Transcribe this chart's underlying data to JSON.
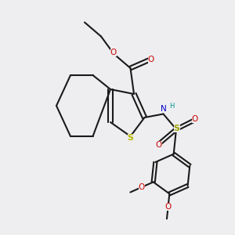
{
  "bg_color": "#eeeef0",
  "bond_color": "#1a1a1a",
  "S_thio_color": "#b8b800",
  "S_sulf_color": "#a0a000",
  "O_color": "#cc0000",
  "N_color": "#0000cc",
  "H_color": "#009090",
  "font_size": 7.5,
  "lw": 1.5,
  "xlim": [
    0,
    10
  ],
  "ylim": [
    0,
    10
  ]
}
